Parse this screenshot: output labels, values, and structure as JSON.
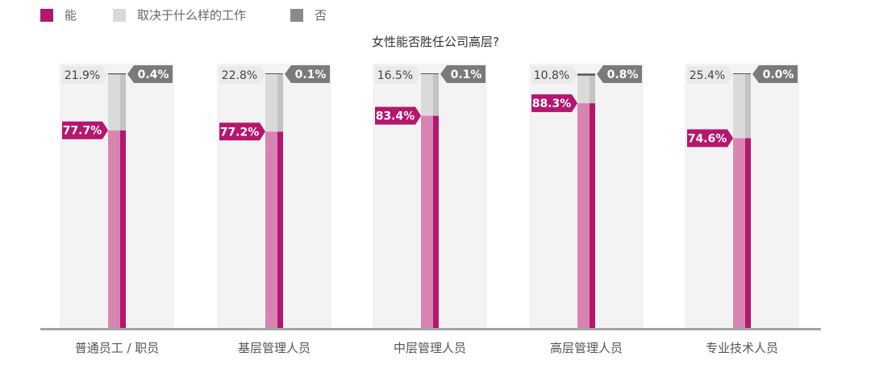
{
  "legend": [
    {
      "label": "能",
      "color": "#b5166f"
    },
    {
      "label": "取决于什么样的工作",
      "color": "#d9d9d9"
    },
    {
      "label": "否",
      "color": "#8a8a8a"
    }
  ],
  "chart_data": {
    "type": "bar",
    "title": "女性能否胜任公司高层?",
    "xlabel": "",
    "ylabel": "",
    "ylim": [
      0,
      100
    ],
    "stacked": true,
    "legend_position": "top-left",
    "grid": false,
    "categories": [
      "普通员工 / 职员",
      "基层管理人员",
      "中层管理人员",
      "高层管理人员",
      "专业技术人员"
    ],
    "series": [
      {
        "name": "能",
        "color": "#b5166f",
        "values": [
          77.7,
          77.2,
          83.4,
          88.3,
          74.6
        ],
        "labels": [
          "77.7%",
          "77.2%",
          "83.4%",
          "88.3%",
          "74.6%"
        ]
      },
      {
        "name": "取决于什么样的工作",
        "color": "#d9d9d9",
        "values": [
          21.9,
          22.8,
          16.5,
          10.8,
          25.4
        ],
        "labels": [
          "21.9%",
          "22.8%",
          "16.5%",
          "10.8%",
          "25.4%"
        ]
      },
      {
        "name": "否",
        "color": "#8a8a8a",
        "values": [
          0.4,
          0.1,
          0.1,
          0.8,
          0.0
        ],
        "labels": [
          "0.4%",
          "0.1%",
          "0.1%",
          "0.8%",
          "0.0%"
        ]
      }
    ]
  }
}
